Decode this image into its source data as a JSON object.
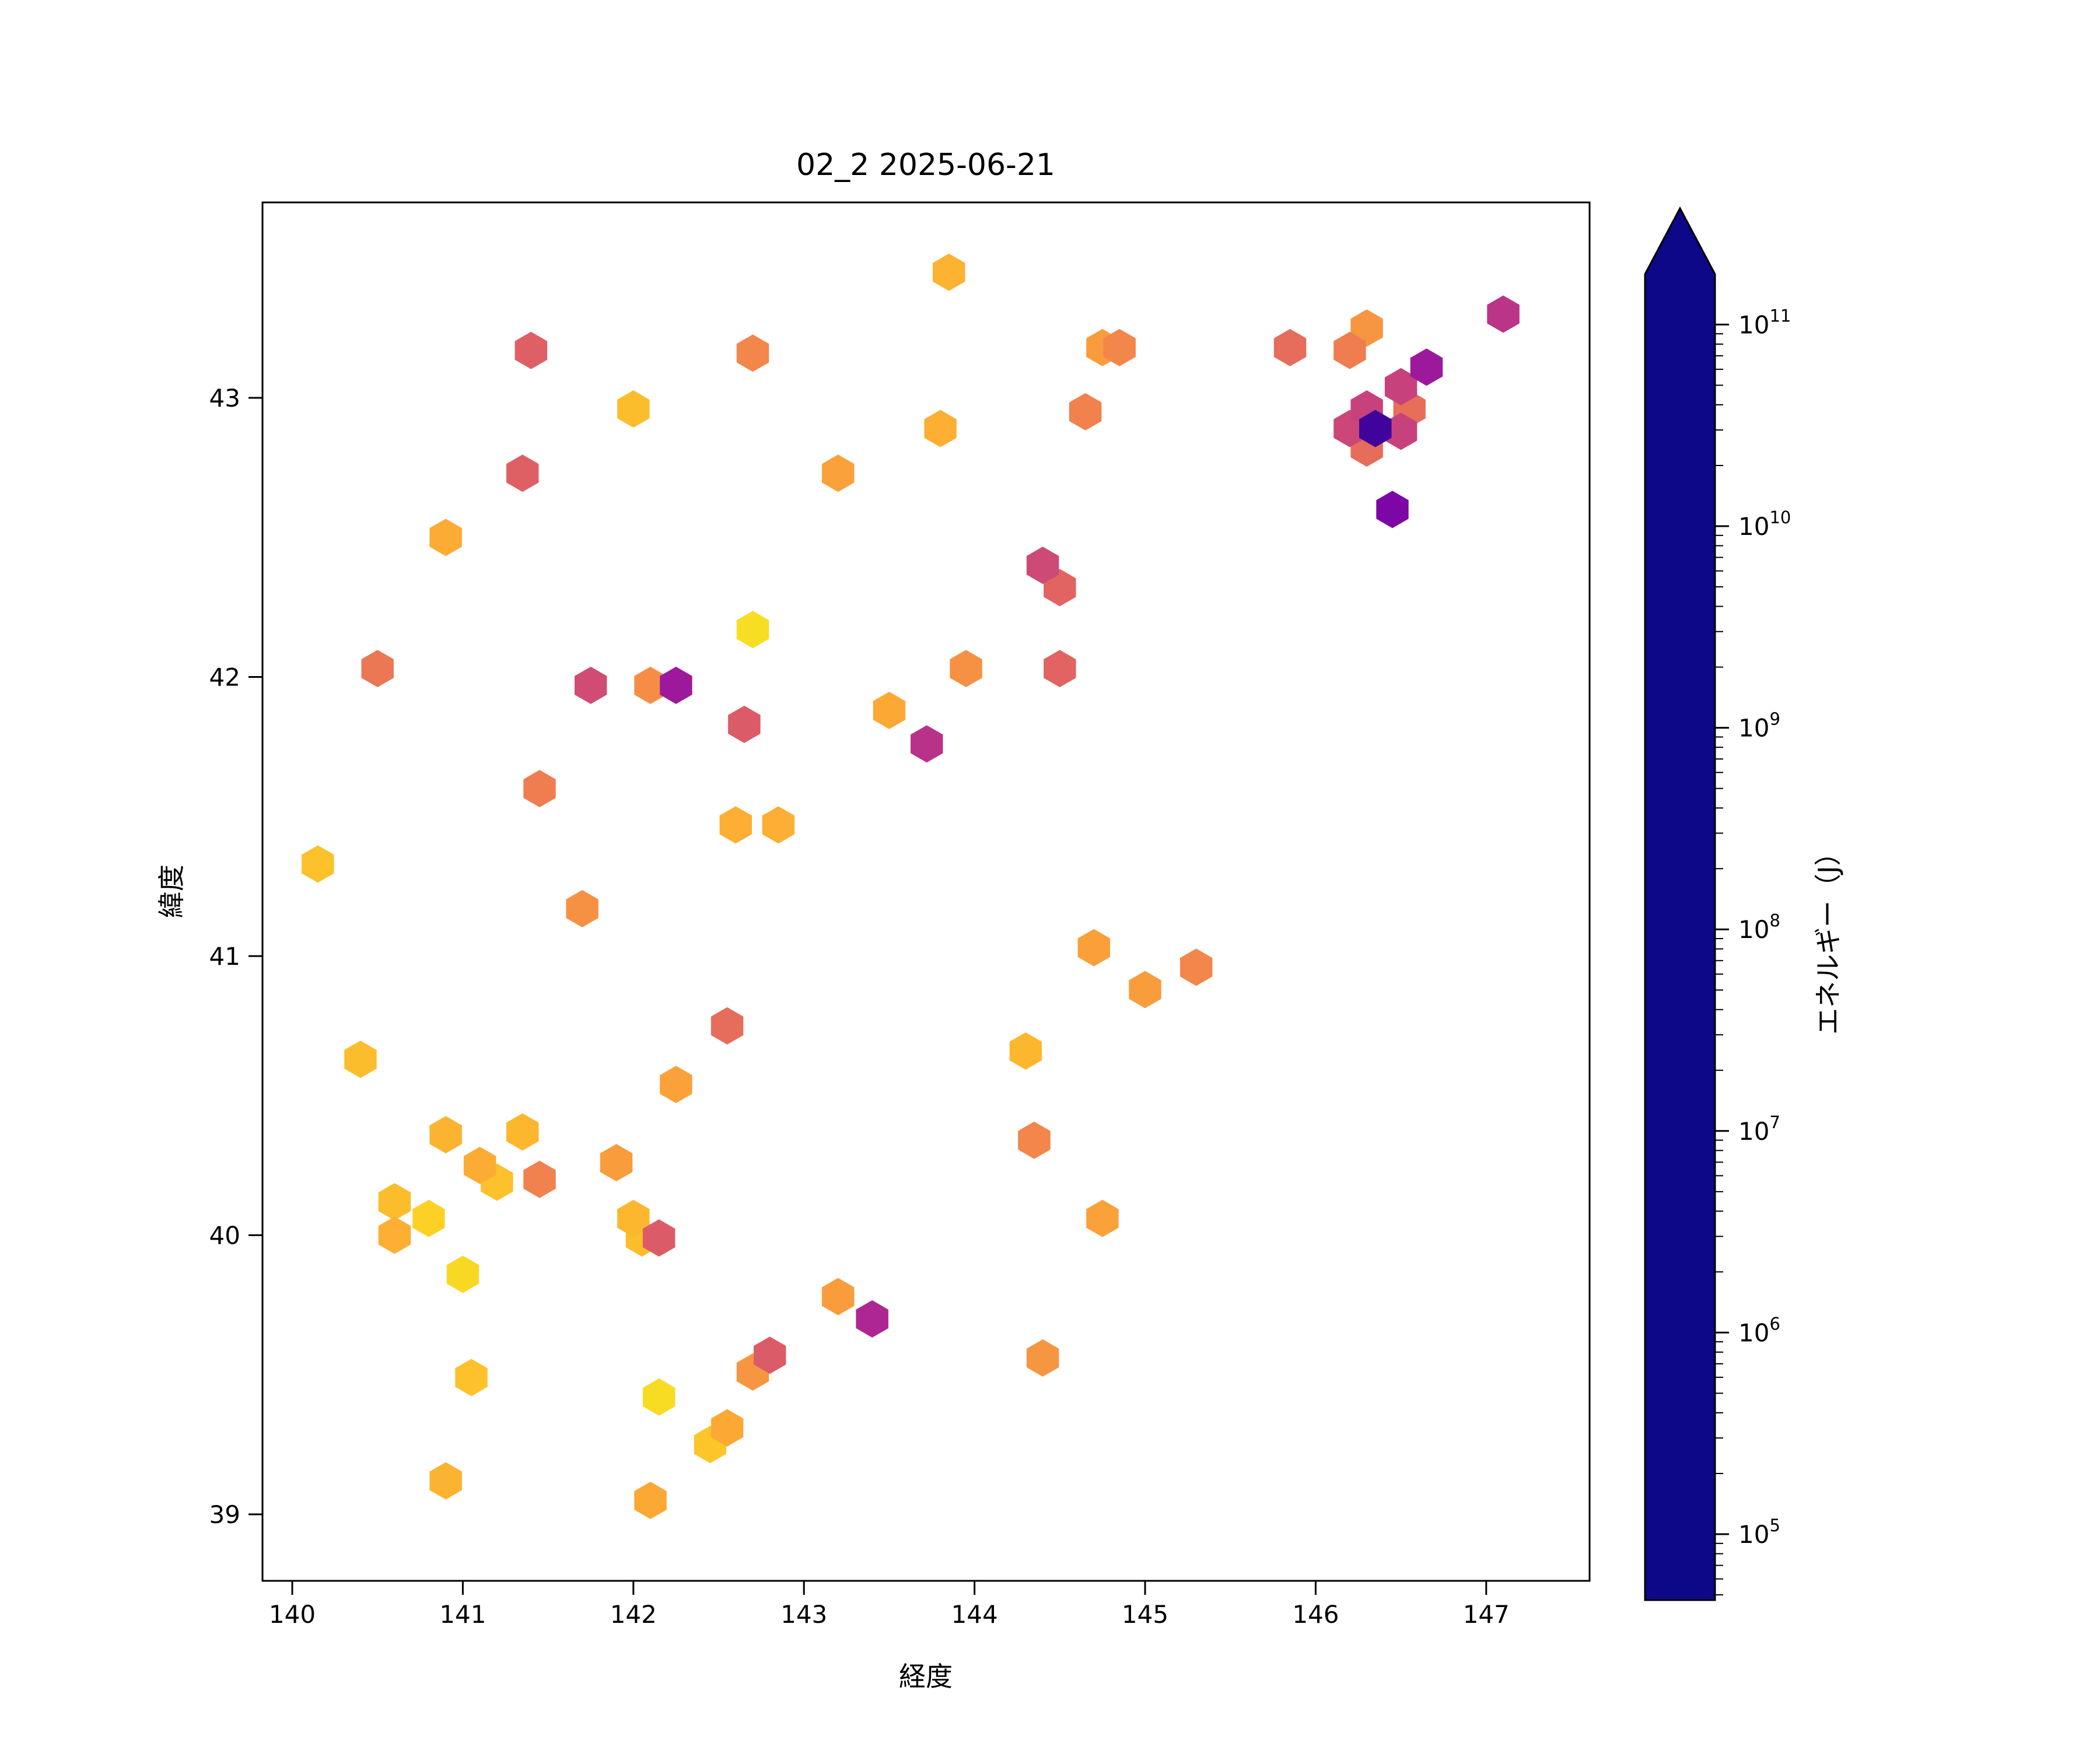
{
  "title": "02_2 2025-06-21",
  "chart_data": {
    "type": "scatter",
    "marker": "hexagon",
    "title": "02_2 2025-06-21",
    "xlabel": "経度",
    "ylabel": "緯度",
    "xlim": [
      139.83,
      147.61
    ],
    "ylim": [
      38.76,
      43.73
    ],
    "xticks": [
      140,
      141,
      142,
      143,
      144,
      145,
      146,
      147
    ],
    "yticks": [
      39,
      40,
      41,
      42,
      43
    ],
    "grid": false,
    "legend_position": "none",
    "colorbar": {
      "label": "エネルギー（J）",
      "scale": "log",
      "tick_exponents": [
        5,
        6,
        7,
        8,
        9,
        10,
        11
      ],
      "range_log10": [
        4.67,
        11.25
      ],
      "extend": "max",
      "colormap": "plasma reversed (yellow = low energy, navy = high energy)"
    },
    "colormap_stops": [
      [
        0.0,
        "#0d0887"
      ],
      [
        0.1,
        "#41049d"
      ],
      [
        0.2,
        "#6a00a8"
      ],
      [
        0.3,
        "#8f0da4"
      ],
      [
        0.4,
        "#b12a90"
      ],
      [
        0.5,
        "#cc4778"
      ],
      [
        0.6,
        "#e16462"
      ],
      [
        0.7,
        "#f2844b"
      ],
      [
        0.8,
        "#fca636"
      ],
      [
        0.9,
        "#fcce25"
      ],
      [
        1.0,
        "#f0f921"
      ]
    ],
    "points": [
      {
        "lon": 143.85,
        "lat": 43.45,
        "energy_j": 600000.0
      },
      {
        "lon": 141.4,
        "lat": 43.17,
        "energy_j": 25000000.0
      },
      {
        "lon": 142.7,
        "lat": 43.16,
        "energy_j": 4000000.0
      },
      {
        "lon": 144.75,
        "lat": 43.18,
        "energy_j": 1500000.0
      },
      {
        "lon": 144.85,
        "lat": 43.18,
        "energy_j": 4000000.0
      },
      {
        "lon": 145.85,
        "lat": 43.18,
        "energy_j": 13000000.0
      },
      {
        "lon": 146.3,
        "lat": 43.25,
        "energy_j": 2000000.0
      },
      {
        "lon": 146.2,
        "lat": 43.17,
        "energy_j": 6000000.0
      },
      {
        "lon": 147.1,
        "lat": 43.3,
        "energy_j": 250000000.0
      },
      {
        "lon": 146.65,
        "lat": 43.11,
        "energy_j": 1000000000.0
      },
      {
        "lon": 142.0,
        "lat": 42.96,
        "energy_j": 400000.0
      },
      {
        "lon": 144.65,
        "lat": 42.95,
        "energy_j": 5000000.0
      },
      {
        "lon": 146.5,
        "lat": 43.04,
        "energy_j": 120000000.0
      },
      {
        "lon": 146.3,
        "lat": 42.96,
        "energy_j": 120000000.0
      },
      {
        "lon": 146.55,
        "lat": 42.96,
        "energy_j": 12000000.0
      },
      {
        "lon": 146.2,
        "lat": 42.89,
        "energy_j": 90000000.0
      },
      {
        "lon": 146.35,
        "lat": 42.89,
        "energy_j": 40000000000.0
      },
      {
        "lon": 146.5,
        "lat": 42.88,
        "energy_j": 120000000.0
      },
      {
        "lon": 146.3,
        "lat": 42.82,
        "energy_j": 13000000.0
      },
      {
        "lon": 143.8,
        "lat": 42.89,
        "energy_j": 700000.0
      },
      {
        "lon": 143.2,
        "lat": 42.73,
        "energy_j": 1200000.0
      },
      {
        "lon": 141.35,
        "lat": 42.73,
        "energy_j": 25000000.0
      },
      {
        "lon": 146.45,
        "lat": 42.6,
        "energy_j": 4000000000.0
      },
      {
        "lon": 140.9,
        "lat": 42.5,
        "energy_j": 800000.0
      },
      {
        "lon": 144.4,
        "lat": 42.4,
        "energy_j": 80000000.0
      },
      {
        "lon": 144.5,
        "lat": 42.32,
        "energy_j": 20000000.0
      },
      {
        "lon": 142.7,
        "lat": 42.17,
        "energy_j": 120000.0
      },
      {
        "lon": 140.5,
        "lat": 42.03,
        "energy_j": 8000000.0
      },
      {
        "lon": 144.5,
        "lat": 42.03,
        "energy_j": 20000000.0
      },
      {
        "lon": 143.95,
        "lat": 42.03,
        "energy_j": 2500000.0
      },
      {
        "lon": 141.75,
        "lat": 41.97,
        "energy_j": 70000000.0
      },
      {
        "lon": 142.1,
        "lat": 41.97,
        "energy_j": 3000000.0
      },
      {
        "lon": 142.25,
        "lat": 41.97,
        "energy_j": 1000000000.0
      },
      {
        "lon": 143.5,
        "lat": 41.88,
        "energy_j": 900000.0
      },
      {
        "lon": 142.65,
        "lat": 41.83,
        "energy_j": 30000000.0
      },
      {
        "lon": 143.72,
        "lat": 41.76,
        "energy_j": 280000000.0
      },
      {
        "lon": 141.45,
        "lat": 41.6,
        "energy_j": 6000000.0
      },
      {
        "lon": 142.6,
        "lat": 41.47,
        "energy_j": 700000.0
      },
      {
        "lon": 142.85,
        "lat": 41.47,
        "energy_j": 700000.0
      },
      {
        "lon": 140.15,
        "lat": 41.33,
        "energy_j": 350000.0
      },
      {
        "lon": 141.7,
        "lat": 41.17,
        "energy_j": 2500000.0
      },
      {
        "lon": 144.7,
        "lat": 41.03,
        "energy_j": 1300000.0
      },
      {
        "lon": 145.3,
        "lat": 40.96,
        "energy_j": 4000000.0
      },
      {
        "lon": 145.0,
        "lat": 40.88,
        "energy_j": 1500000.0
      },
      {
        "lon": 142.55,
        "lat": 40.75,
        "energy_j": 13000000.0
      },
      {
        "lon": 144.3,
        "lat": 40.66,
        "energy_j": 500000.0
      },
      {
        "lon": 140.4,
        "lat": 40.63,
        "energy_j": 400000.0
      },
      {
        "lon": 142.25,
        "lat": 40.54,
        "energy_j": 1200000.0
      },
      {
        "lon": 140.9,
        "lat": 40.36,
        "energy_j": 600000.0
      },
      {
        "lon": 141.35,
        "lat": 40.37,
        "energy_j": 500000.0
      },
      {
        "lon": 144.35,
        "lat": 40.34,
        "energy_j": 4000000.0
      },
      {
        "lon": 141.1,
        "lat": 40.25,
        "energy_j": 800000.0
      },
      {
        "lon": 141.2,
        "lat": 40.19,
        "energy_j": 350000.0
      },
      {
        "lon": 141.45,
        "lat": 40.2,
        "energy_j": 5000000.0
      },
      {
        "lon": 141.9,
        "lat": 40.26,
        "energy_j": 1500000.0
      },
      {
        "lon": 140.6,
        "lat": 40.12,
        "energy_j": 400000.0
      },
      {
        "lon": 140.8,
        "lat": 40.06,
        "energy_j": 200000.0
      },
      {
        "lon": 140.6,
        "lat": 40.0,
        "energy_j": 700000.0
      },
      {
        "lon": 142.0,
        "lat": 40.06,
        "energy_j": 500000.0
      },
      {
        "lon": 142.05,
        "lat": 39.99,
        "energy_j": 400000.0
      },
      {
        "lon": 142.15,
        "lat": 39.99,
        "energy_j": 30000000.0
      },
      {
        "lon": 144.75,
        "lat": 40.06,
        "energy_j": 1200000.0
      },
      {
        "lon": 141.0,
        "lat": 39.86,
        "energy_j": 150000.0
      },
      {
        "lon": 144.4,
        "lat": 39.56,
        "energy_j": 2000000.0
      },
      {
        "lon": 141.05,
        "lat": 39.49,
        "energy_j": 350000.0
      },
      {
        "lon": 142.15,
        "lat": 39.42,
        "energy_j": 130000.0
      },
      {
        "lon": 142.8,
        "lat": 39.57,
        "energy_j": 30000000.0
      },
      {
        "lon": 142.7,
        "lat": 39.51,
        "energy_j": 2000000.0
      },
      {
        "lon": 143.2,
        "lat": 39.78,
        "energy_j": 1500000.0
      },
      {
        "lon": 143.4,
        "lat": 39.7,
        "energy_j": 500000000.0
      },
      {
        "lon": 142.55,
        "lat": 39.31,
        "energy_j": 900000.0
      },
      {
        "lon": 142.45,
        "lat": 39.25,
        "energy_j": 300000.0
      },
      {
        "lon": 140.9,
        "lat": 39.12,
        "energy_j": 600000.0
      },
      {
        "lon": 142.1,
        "lat": 39.05,
        "energy_j": 900000.0
      }
    ]
  }
}
